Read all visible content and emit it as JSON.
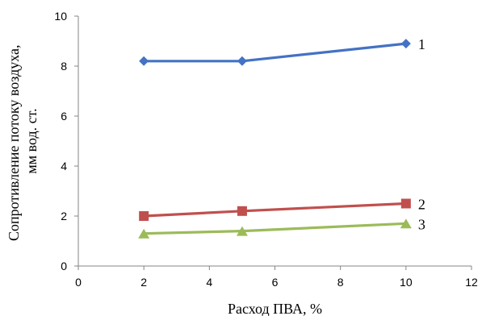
{
  "chart_data": {
    "type": "line",
    "xlabel": "Расход ПВА, %",
    "ylabel_line1": "Сопротивление потоку воздуха,",
    "ylabel_line2": "мм вод. ст.",
    "xlim": [
      0,
      12
    ],
    "ylim": [
      0,
      10
    ],
    "x_ticks": [
      0,
      2,
      4,
      6,
      8,
      10,
      12
    ],
    "y_ticks": [
      0,
      2,
      4,
      6,
      8,
      10
    ],
    "grid": false,
    "legend": "inline labels at line ends",
    "series": [
      {
        "label": "1",
        "color": "#4472c4",
        "marker": "diamond",
        "x": [
          2,
          5,
          10
        ],
        "y": [
          8.2,
          8.2,
          8.9
        ]
      },
      {
        "label": "2",
        "color": "#c0504d",
        "marker": "square",
        "x": [
          2,
          5,
          10
        ],
        "y": [
          2.0,
          2.2,
          2.5
        ]
      },
      {
        "label": "3",
        "color": "#9bbb59",
        "marker": "triangle",
        "x": [
          2,
          5,
          10
        ],
        "y": [
          1.3,
          1.4,
          1.7
        ]
      }
    ]
  }
}
